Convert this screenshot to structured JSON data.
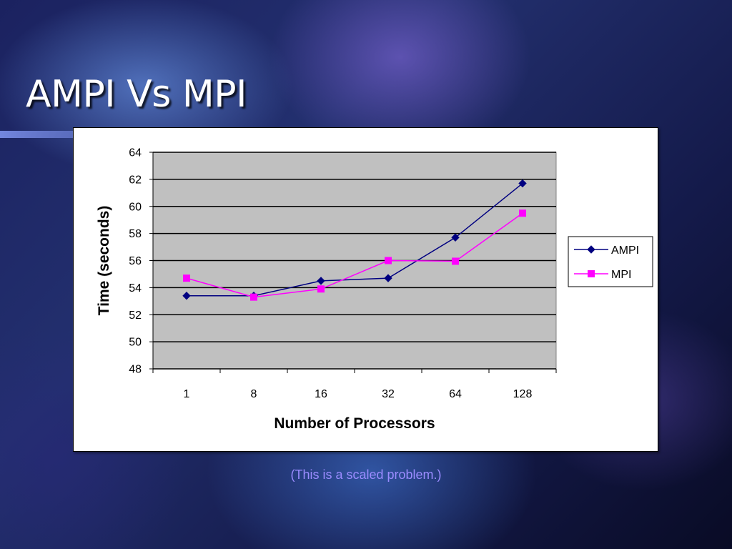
{
  "slide": {
    "title": "AMPI Vs MPI",
    "caption": "(This is a scaled problem.)"
  },
  "colors": {
    "title_text": "#ffffff",
    "caption_text": "#9b8cff",
    "plot_background": "#c0c0c0",
    "ampi_series": "#000080",
    "mpi_series": "#ff00ff"
  },
  "chart_data": {
    "type": "line",
    "title": "",
    "xlabel": "Number of Processors",
    "ylabel": "Time (seconds)",
    "categories": [
      "1",
      "8",
      "16",
      "32",
      "64",
      "128"
    ],
    "ylim": [
      48,
      64
    ],
    "yticks": [
      48,
      50,
      52,
      54,
      56,
      58,
      60,
      62,
      64
    ],
    "grid": "horizontal",
    "legend_position": "right",
    "series": [
      {
        "name": "AMPI",
        "marker": "diamond",
        "color": "#000080",
        "values": [
          53.4,
          53.4,
          54.5,
          54.7,
          57.7,
          61.7
        ]
      },
      {
        "name": "MPI",
        "marker": "square",
        "color": "#ff00ff",
        "values": [
          54.7,
          53.3,
          53.9,
          56.0,
          55.95,
          59.5
        ]
      }
    ]
  }
}
